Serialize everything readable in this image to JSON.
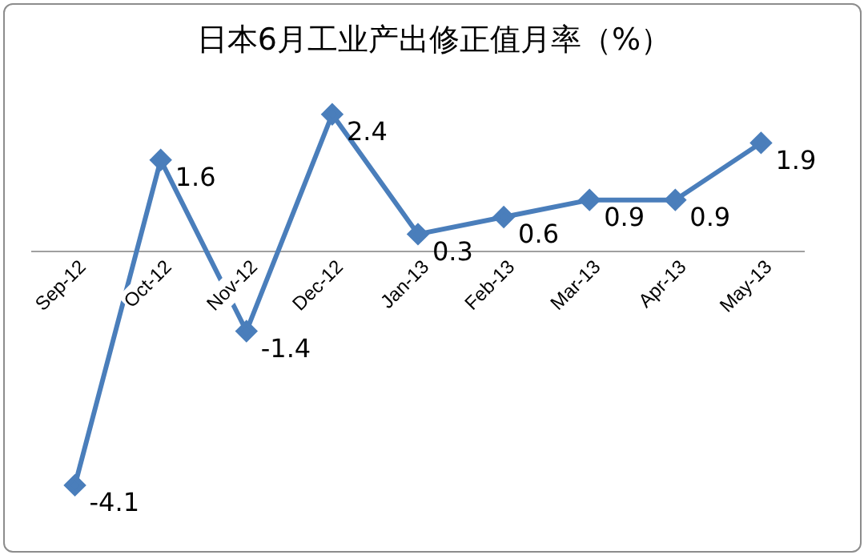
{
  "chart_data": {
    "type": "line",
    "title": "日本6月工业产出修正值月率（%）",
    "categories": [
      "Sep-12",
      "Oct-12",
      "Nov-12",
      "Dec-12",
      "Jan-13",
      "Feb-13",
      "Mar-13",
      "Apr-13",
      "May-13"
    ],
    "series": [
      {
        "color": "#4a7ebb",
        "values": [
          -4.1,
          1.6,
          -1.4,
          2.4,
          0.3,
          0.6,
          0.9,
          0.9,
          1.9
        ]
      }
    ],
    "data_labels": true,
    "marker": "diamond",
    "line_style": "solid",
    "grid": false,
    "legend": false
  }
}
